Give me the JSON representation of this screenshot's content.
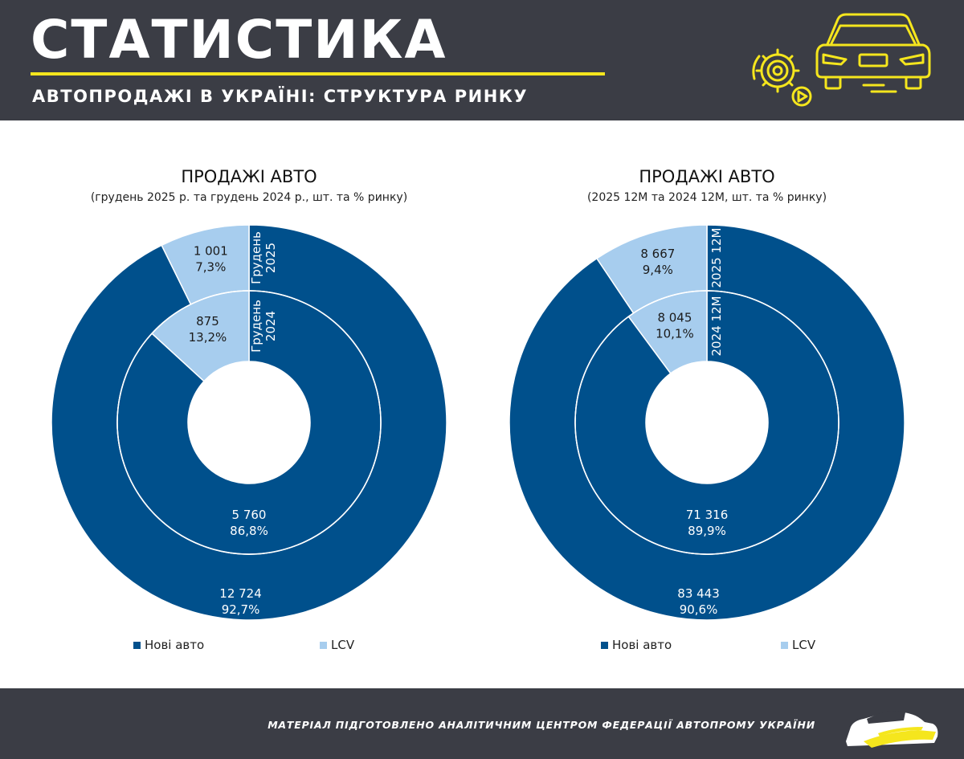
{
  "header": {
    "title": "СТАТИСТИКА",
    "subtitle": "АВТОПРОДАЖІ В УКРАЇНІ: СТРУКТУРА РИНКУ"
  },
  "colors": {
    "dark": "#00508c",
    "light": "#a7cdee",
    "banner": "#3b3d45",
    "accent": "#f5e61d"
  },
  "chart_data": [
    {
      "type": "donut",
      "title": "ПРОДАЖІ АВТО",
      "subtitle": "(грудень 2025 р. та грудень 2024 р., шт. та % ринку)",
      "legend": [
        "Нові авто",
        "LCV"
      ],
      "series": [
        {
          "name": "Грудень 2025",
          "ring": "outer",
          "ring_label": [
            "Грудень",
            "2025"
          ],
          "values": [
            12724,
            1001
          ],
          "labels": [
            "12 724",
            "1 001"
          ],
          "percents": [
            "92,7%",
            "7,3%"
          ]
        },
        {
          "name": "Грудень 2024",
          "ring": "inner",
          "ring_label": [
            "Грудень",
            "2024"
          ],
          "values": [
            5760,
            875
          ],
          "labels": [
            "5 760",
            "875"
          ],
          "percents": [
            "86,8%",
            "13,2%"
          ]
        }
      ]
    },
    {
      "type": "donut",
      "title": "ПРОДАЖІ АВТО",
      "subtitle": "(2025 12М та 2024 12М, шт. та % ринку)",
      "legend": [
        "Нові авто",
        "LCV"
      ],
      "series": [
        {
          "name": "2025 12М",
          "ring": "outer",
          "ring_label": [
            "2025 12М"
          ],
          "values": [
            83443,
            8667
          ],
          "labels": [
            "83 443",
            "8 667"
          ],
          "percents": [
            "90,6%",
            "9,4%"
          ]
        },
        {
          "name": "2024 12М",
          "ring": "inner",
          "ring_label": [
            "2024 12М"
          ],
          "values": [
            71316,
            8045
          ],
          "labels": [
            "71 316",
            "8 045"
          ],
          "percents": [
            "89,9%",
            "10,1%"
          ]
        }
      ]
    }
  ],
  "footer": {
    "text": "МАТЕРІАЛ ПІДГОТОВЛЕНО АНАЛІТИЧНИМ ЦЕНТРОМ ФЕДЕРАЦІЇ АВТОПРОМУ УКРАЇНИ"
  }
}
